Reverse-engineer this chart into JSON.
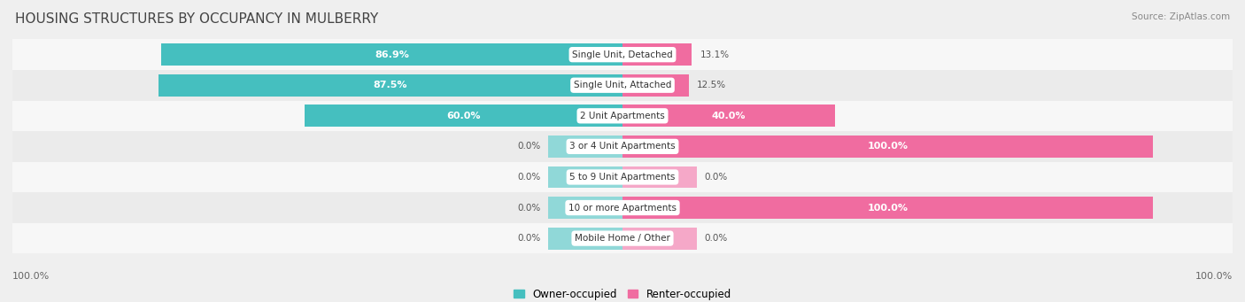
{
  "title": "HOUSING STRUCTURES BY OCCUPANCY IN MULBERRY",
  "source": "Source: ZipAtlas.com",
  "categories": [
    "Single Unit, Detached",
    "Single Unit, Attached",
    "2 Unit Apartments",
    "3 or 4 Unit Apartments",
    "5 to 9 Unit Apartments",
    "10 or more Apartments",
    "Mobile Home / Other"
  ],
  "owner_pct": [
    86.9,
    87.5,
    60.0,
    0.0,
    0.0,
    0.0,
    0.0
  ],
  "renter_pct": [
    13.1,
    12.5,
    40.0,
    100.0,
    0.0,
    100.0,
    0.0
  ],
  "owner_color": "#45BFBF",
  "owner_color_light": "#90D8D8",
  "renter_color": "#F06CA0",
  "renter_color_light": "#F5A8C8",
  "owner_label": "Owner-occupied",
  "renter_label": "Renter-occupied",
  "background_color": "#EFEFEF",
  "row_colors": [
    "#F7F7F7",
    "#EBEBEB"
  ],
  "axis_label_left": "100.0%",
  "axis_label_right": "100.0%",
  "title_fontsize": 11,
  "source_fontsize": 7.5,
  "bar_fontsize_inside": 8,
  "bar_fontsize_outside": 7.5,
  "category_fontsize": 7.5,
  "legend_fontsize": 8.5
}
